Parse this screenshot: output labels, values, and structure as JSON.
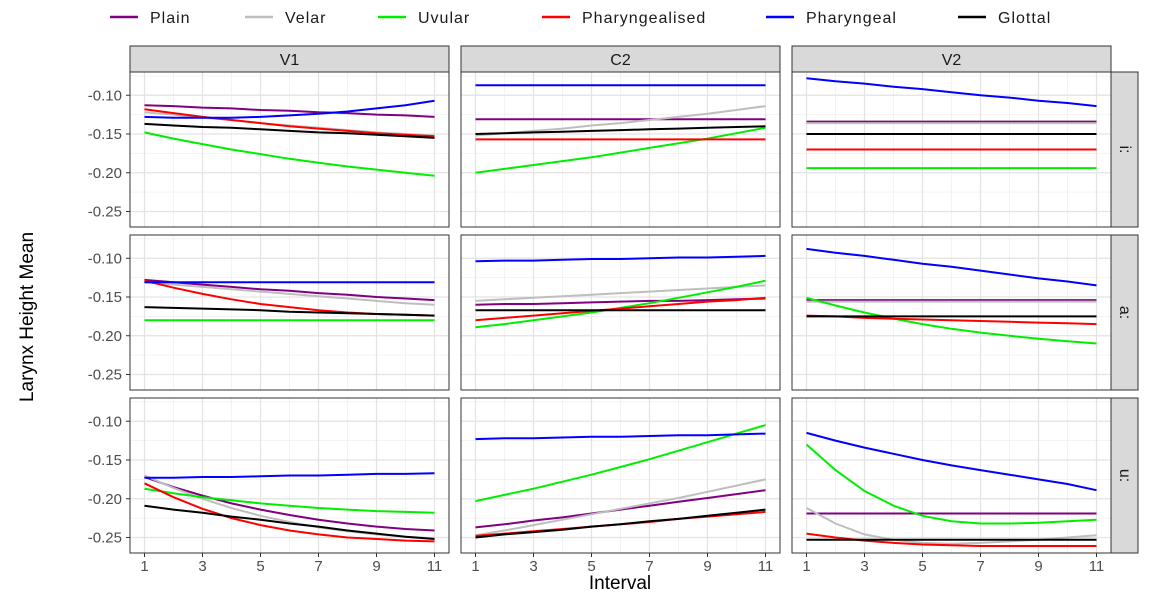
{
  "chart_data": {
    "type": "line",
    "xlabel": "Interval",
    "ylabel": "Larynx Height Mean",
    "xlim": [
      0.5,
      11.5
    ],
    "ylim": [
      -0.27,
      -0.07
    ],
    "x_ticks": [
      1,
      3,
      5,
      7,
      9,
      11
    ],
    "x_tick_labels": [
      "1",
      "3",
      "5",
      "7",
      "9",
      "11"
    ],
    "y_ticks": [
      -0.25,
      -0.2,
      -0.15,
      -0.1
    ],
    "y_tick_labels": [
      "-0.25",
      "-0.20",
      "-0.15",
      "-0.10"
    ],
    "grid": true,
    "legend_position": "top",
    "column_labels": [
      "V1",
      "C2",
      "V2"
    ],
    "row_labels": [
      "i:",
      "a:",
      "u:"
    ],
    "series": [
      {
        "name": "Plain",
        "color": "#800080"
      },
      {
        "name": "Velar",
        "color": "#bebebe"
      },
      {
        "name": "Uvular",
        "color": "#00ee00"
      },
      {
        "name": "Pharyngealised",
        "color": "#ff0000"
      },
      {
        "name": "Pharyngeal",
        "color": "#0000ff"
      },
      {
        "name": "Glottal",
        "color": "#000000"
      }
    ],
    "x": [
      1,
      2,
      3,
      4,
      5,
      6,
      7,
      8,
      9,
      10,
      11
    ],
    "panels": [
      {
        "column": "V1",
        "row": "i:",
        "lines": {
          "Plain": [
            -0.113,
            -0.114,
            -0.116,
            -0.117,
            -0.119,
            -0.12,
            -0.122,
            -0.123,
            -0.125,
            -0.126,
            -0.128
          ],
          "Velar": [
            -0.122,
            -0.125,
            -0.129,
            -0.132,
            -0.136,
            -0.139,
            -0.142,
            -0.145,
            -0.148,
            -0.15,
            -0.152
          ],
          "Uvular": [
            -0.148,
            -0.156,
            -0.163,
            -0.17,
            -0.176,
            -0.182,
            -0.187,
            -0.192,
            -0.196,
            -0.2,
            -0.204
          ],
          "Pharyngealised": [
            -0.118,
            -0.123,
            -0.128,
            -0.132,
            -0.136,
            -0.14,
            -0.143,
            -0.146,
            -0.149,
            -0.151,
            -0.153
          ],
          "Pharyngeal": [
            -0.128,
            -0.129,
            -0.129,
            -0.129,
            -0.128,
            -0.126,
            -0.124,
            -0.121,
            -0.117,
            -0.113,
            -0.107
          ],
          "Glottal": [
            -0.137,
            -0.139,
            -0.141,
            -0.142,
            -0.144,
            -0.146,
            -0.148,
            -0.149,
            -0.151,
            -0.153,
            -0.155
          ]
        }
      },
      {
        "column": "C2",
        "row": "i:",
        "lines": {
          "Plain": [
            -0.131,
            -0.131,
            -0.131,
            -0.131,
            -0.131,
            -0.131,
            -0.131,
            -0.131,
            -0.131,
            -0.131,
            -0.131
          ],
          "Velar": [
            -0.152,
            -0.149,
            -0.146,
            -0.143,
            -0.139,
            -0.136,
            -0.132,
            -0.128,
            -0.124,
            -0.119,
            -0.114
          ],
          "Uvular": [
            -0.2,
            -0.195,
            -0.19,
            -0.185,
            -0.18,
            -0.174,
            -0.168,
            -0.162,
            -0.156,
            -0.149,
            -0.142
          ],
          "Pharyngealised": [
            -0.157,
            -0.157,
            -0.157,
            -0.157,
            -0.157,
            -0.157,
            -0.157,
            -0.157,
            -0.157,
            -0.157,
            -0.157
          ],
          "Pharyngeal": [
            -0.087,
            -0.087,
            -0.087,
            -0.087,
            -0.087,
            -0.087,
            -0.087,
            -0.087,
            -0.087,
            -0.087,
            -0.087
          ],
          "Glottal": [
            -0.15,
            -0.149,
            -0.148,
            -0.147,
            -0.146,
            -0.145,
            -0.144,
            -0.143,
            -0.142,
            -0.141,
            -0.14
          ]
        }
      },
      {
        "column": "V2",
        "row": "i:",
        "lines": {
          "Plain": [
            -0.134,
            -0.134,
            -0.134,
            -0.134,
            -0.134,
            -0.134,
            -0.134,
            -0.134,
            -0.134,
            -0.134,
            -0.134
          ],
          "Velar": [
            -0.136,
            -0.136,
            -0.136,
            -0.136,
            -0.136,
            -0.136,
            -0.136,
            -0.136,
            -0.136,
            -0.136,
            -0.136
          ],
          "Uvular": [
            -0.194,
            -0.194,
            -0.194,
            -0.194,
            -0.194,
            -0.194,
            -0.194,
            -0.194,
            -0.194,
            -0.194,
            -0.194
          ],
          "Pharyngealised": [
            -0.17,
            -0.17,
            -0.17,
            -0.17,
            -0.17,
            -0.17,
            -0.17,
            -0.17,
            -0.17,
            -0.17,
            -0.17
          ],
          "Pharyngeal": [
            -0.078,
            -0.082,
            -0.085,
            -0.089,
            -0.092,
            -0.096,
            -0.1,
            -0.103,
            -0.107,
            -0.11,
            -0.114
          ],
          "Glottal": [
            -0.15,
            -0.15,
            -0.15,
            -0.15,
            -0.15,
            -0.15,
            -0.15,
            -0.15,
            -0.15,
            -0.15,
            -0.15
          ]
        }
      },
      {
        "column": "V1",
        "row": "a:",
        "lines": {
          "Plain": [
            -0.128,
            -0.131,
            -0.134,
            -0.137,
            -0.14,
            -0.142,
            -0.145,
            -0.147,
            -0.15,
            -0.152,
            -0.154
          ],
          "Velar": [
            -0.131,
            -0.134,
            -0.137,
            -0.14,
            -0.143,
            -0.146,
            -0.149,
            -0.152,
            -0.155,
            -0.158,
            -0.16
          ],
          "Uvular": [
            -0.18,
            -0.18,
            -0.18,
            -0.18,
            -0.18,
            -0.18,
            -0.18,
            -0.18,
            -0.18,
            -0.18,
            -0.18
          ],
          "Pharyngealised": [
            -0.129,
            -0.138,
            -0.146,
            -0.153,
            -0.159,
            -0.163,
            -0.167,
            -0.17,
            -0.172,
            -0.173,
            -0.174
          ],
          "Pharyngeal": [
            -0.131,
            -0.131,
            -0.131,
            -0.131,
            -0.131,
            -0.131,
            -0.131,
            -0.131,
            -0.131,
            -0.131,
            -0.131
          ],
          "Glottal": [
            -0.163,
            -0.164,
            -0.165,
            -0.166,
            -0.167,
            -0.169,
            -0.17,
            -0.171,
            -0.172,
            -0.173,
            -0.174
          ]
        }
      },
      {
        "column": "C2",
        "row": "a:",
        "lines": {
          "Plain": [
            -0.16,
            -0.159,
            -0.159,
            -0.158,
            -0.157,
            -0.156,
            -0.155,
            -0.155,
            -0.154,
            -0.153,
            -0.152
          ],
          "Velar": [
            -0.155,
            -0.153,
            -0.151,
            -0.149,
            -0.147,
            -0.145,
            -0.143,
            -0.141,
            -0.139,
            -0.137,
            -0.135
          ],
          "Uvular": [
            -0.189,
            -0.185,
            -0.18,
            -0.175,
            -0.17,
            -0.164,
            -0.158,
            -0.151,
            -0.144,
            -0.137,
            -0.129
          ],
          "Pharyngealised": [
            -0.18,
            -0.177,
            -0.174,
            -0.171,
            -0.168,
            -0.165,
            -0.162,
            -0.159,
            -0.156,
            -0.154,
            -0.151
          ],
          "Pharyngeal": [
            -0.104,
            -0.103,
            -0.103,
            -0.102,
            -0.101,
            -0.101,
            -0.1,
            -0.099,
            -0.099,
            -0.098,
            -0.097
          ],
          "Glottal": [
            -0.167,
            -0.167,
            -0.167,
            -0.167,
            -0.167,
            -0.167,
            -0.167,
            -0.167,
            -0.167,
            -0.167,
            -0.167
          ]
        }
      },
      {
        "column": "V2",
        "row": "a:",
        "lines": {
          "Plain": [
            -0.154,
            -0.154,
            -0.154,
            -0.154,
            -0.154,
            -0.154,
            -0.154,
            -0.154,
            -0.154,
            -0.154,
            -0.154
          ],
          "Velar": [
            -0.156,
            -0.156,
            -0.156,
            -0.156,
            -0.156,
            -0.156,
            -0.156,
            -0.156,
            -0.156,
            -0.156,
            -0.156
          ],
          "Uvular": [
            -0.151,
            -0.161,
            -0.17,
            -0.178,
            -0.185,
            -0.191,
            -0.196,
            -0.2,
            -0.204,
            -0.207,
            -0.21
          ],
          "Pharyngealised": [
            -0.174,
            -0.175,
            -0.177,
            -0.178,
            -0.179,
            -0.18,
            -0.181,
            -0.182,
            -0.183,
            -0.184,
            -0.185
          ],
          "Pharyngeal": [
            -0.088,
            -0.093,
            -0.097,
            -0.102,
            -0.107,
            -0.111,
            -0.116,
            -0.121,
            -0.126,
            -0.13,
            -0.135
          ],
          "Glottal": [
            -0.175,
            -0.175,
            -0.175,
            -0.175,
            -0.175,
            -0.175,
            -0.175,
            -0.175,
            -0.175,
            -0.175,
            -0.175
          ]
        }
      },
      {
        "column": "V1",
        "row": "u:",
        "lines": {
          "Plain": [
            -0.172,
            -0.185,
            -0.196,
            -0.206,
            -0.214,
            -0.221,
            -0.227,
            -0.232,
            -0.236,
            -0.239,
            -0.241
          ],
          "Velar": [
            -0.17,
            -0.186,
            -0.2,
            -0.212,
            -0.222,
            -0.23,
            -0.237,
            -0.242,
            -0.246,
            -0.249,
            -0.251
          ],
          "Uvular": [
            -0.187,
            -0.193,
            -0.198,
            -0.202,
            -0.206,
            -0.209,
            -0.212,
            -0.214,
            -0.216,
            -0.217,
            -0.218
          ],
          "Pharyngealised": [
            -0.18,
            -0.198,
            -0.213,
            -0.225,
            -0.234,
            -0.241,
            -0.246,
            -0.25,
            -0.252,
            -0.254,
            -0.255
          ],
          "Pharyngeal": [
            -0.173,
            -0.173,
            -0.172,
            -0.172,
            -0.171,
            -0.17,
            -0.17,
            -0.169,
            -0.168,
            -0.168,
            -0.167
          ],
          "Glottal": [
            -0.209,
            -0.214,
            -0.218,
            -0.223,
            -0.227,
            -0.232,
            -0.236,
            -0.241,
            -0.245,
            -0.249,
            -0.252
          ]
        }
      },
      {
        "column": "C2",
        "row": "u:",
        "lines": {
          "Plain": [
            -0.237,
            -0.233,
            -0.228,
            -0.224,
            -0.219,
            -0.214,
            -0.209,
            -0.204,
            -0.199,
            -0.194,
            -0.189
          ],
          "Velar": [
            -0.247,
            -0.241,
            -0.234,
            -0.227,
            -0.22,
            -0.213,
            -0.206,
            -0.199,
            -0.191,
            -0.183,
            -0.175
          ],
          "Uvular": [
            -0.203,
            -0.195,
            -0.187,
            -0.178,
            -0.169,
            -0.159,
            -0.149,
            -0.138,
            -0.127,
            -0.116,
            -0.105
          ],
          "Pharyngealised": [
            -0.248,
            -0.245,
            -0.242,
            -0.239,
            -0.236,
            -0.233,
            -0.23,
            -0.226,
            -0.223,
            -0.22,
            -0.217
          ],
          "Pharyngeal": [
            -0.123,
            -0.122,
            -0.122,
            -0.121,
            -0.12,
            -0.12,
            -0.119,
            -0.118,
            -0.118,
            -0.117,
            -0.116
          ],
          "Glottal": [
            -0.25,
            -0.246,
            -0.243,
            -0.24,
            -0.236,
            -0.233,
            -0.229,
            -0.226,
            -0.222,
            -0.218,
            -0.214
          ]
        }
      },
      {
        "column": "V2",
        "row": "u:",
        "lines": {
          "Plain": [
            -0.219,
            -0.219,
            -0.219,
            -0.219,
            -0.219,
            -0.219,
            -0.219,
            -0.219,
            -0.219,
            -0.219,
            -0.219
          ],
          "Velar": [
            -0.212,
            -0.232,
            -0.246,
            -0.253,
            -0.257,
            -0.258,
            -0.257,
            -0.255,
            -0.253,
            -0.25,
            -0.247
          ],
          "Uvular": [
            -0.13,
            -0.163,
            -0.19,
            -0.209,
            -0.222,
            -0.229,
            -0.232,
            -0.232,
            -0.231,
            -0.229,
            -0.227
          ],
          "Pharyngealised": [
            -0.245,
            -0.25,
            -0.254,
            -0.257,
            -0.259,
            -0.26,
            -0.261,
            -0.261,
            -0.261,
            -0.261,
            -0.261
          ],
          "Pharyngeal": [
            -0.115,
            -0.125,
            -0.134,
            -0.142,
            -0.15,
            -0.157,
            -0.163,
            -0.169,
            -0.175,
            -0.181,
            -0.189
          ],
          "Glottal": [
            -0.253,
            -0.253,
            -0.253,
            -0.253,
            -0.253,
            -0.253,
            -0.253,
            -0.253,
            -0.253,
            -0.253,
            -0.253
          ]
        }
      }
    ]
  }
}
